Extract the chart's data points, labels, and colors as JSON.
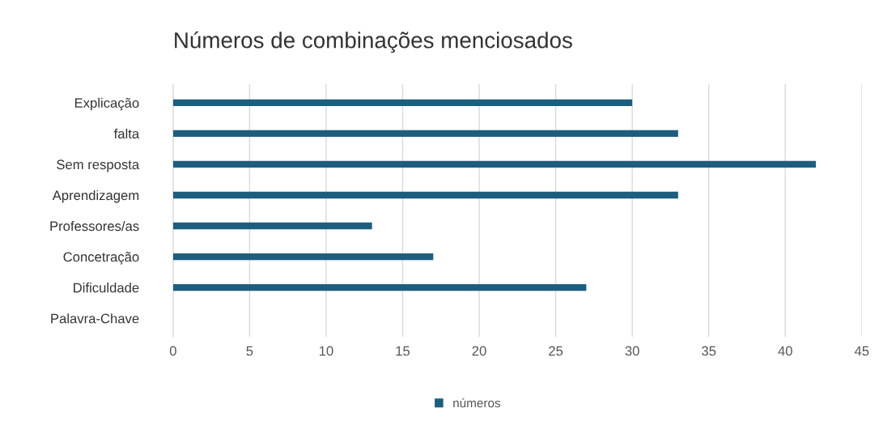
{
  "chart_data": {
    "type": "bar",
    "orientation": "horizontal",
    "title": "Números de combinações menciosados",
    "categories": [
      "Explicação",
      "falta",
      "Sem resposta",
      "Aprendizagem",
      "Professores/as",
      "Concetração",
      "Dificuldade",
      "Palavra-Chave"
    ],
    "series": [
      {
        "name": "números",
        "color": "#1d5e7e",
        "values": [
          30,
          33,
          42,
          33,
          13,
          17,
          27,
          null
        ]
      }
    ],
    "xlim": [
      0,
      45
    ],
    "xticks": [
      0,
      5,
      10,
      15,
      20,
      25,
      30,
      35,
      40,
      45
    ],
    "grid": "x",
    "legend": "bottom"
  }
}
